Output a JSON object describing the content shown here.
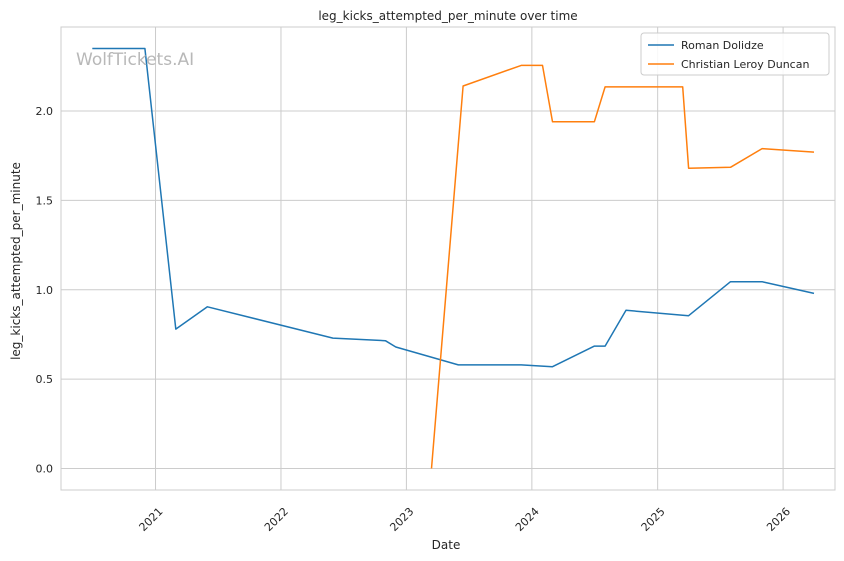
{
  "watermark": "WolfTickets.AI",
  "chart_data": {
    "type": "line",
    "title": "leg_kicks_attempted_per_minute over time",
    "xlabel": "Date",
    "ylabel": "leg_kicks_attempted_per_minute",
    "x_ticks": [
      "2021",
      "2022",
      "2023",
      "2024",
      "2025",
      "2026"
    ],
    "y_ticks": [
      "0.0",
      "0.5",
      "1.0",
      "1.5",
      "2.0"
    ],
    "ylim": [
      -0.12,
      2.47
    ],
    "xlim": [
      "2020-04-01",
      "2026-06-01"
    ],
    "grid": true,
    "legend_position": "top-right",
    "series": [
      {
        "name": "Roman Dolidze",
        "color": "#1f77b4",
        "points": [
          [
            "2020-07-01",
            2.35
          ],
          [
            "2020-12-01",
            2.35
          ],
          [
            "2021-03-01",
            0.78
          ],
          [
            "2021-06-01",
            0.905
          ],
          [
            "2022-06-01",
            0.73
          ],
          [
            "2022-11-01",
            0.715
          ],
          [
            "2022-12-01",
            0.68
          ],
          [
            "2023-06-01",
            0.58
          ],
          [
            "2023-12-01",
            0.58
          ],
          [
            "2024-03-01",
            0.57
          ],
          [
            "2024-07-01",
            0.685
          ],
          [
            "2024-08-01",
            0.685
          ],
          [
            "2024-10-01",
            0.885
          ],
          [
            "2025-04-01",
            0.855
          ],
          [
            "2025-08-01",
            1.045
          ],
          [
            "2025-11-01",
            1.045
          ],
          [
            "2026-04-01",
            0.98
          ]
        ]
      },
      {
        "name": "Christian Leroy Duncan",
        "color": "#ff7f0e",
        "points": [
          [
            "2023-03-15",
            0.0
          ],
          [
            "2023-06-15",
            2.14
          ],
          [
            "2023-12-01",
            2.255
          ],
          [
            "2024-02-01",
            2.255
          ],
          [
            "2024-03-01",
            1.94
          ],
          [
            "2024-07-01",
            1.94
          ],
          [
            "2024-08-01",
            2.135
          ],
          [
            "2025-03-15",
            2.135
          ],
          [
            "2025-04-01",
            1.68
          ],
          [
            "2025-08-01",
            1.685
          ],
          [
            "2025-11-01",
            1.79
          ],
          [
            "2026-04-01",
            1.77
          ]
        ]
      }
    ]
  }
}
